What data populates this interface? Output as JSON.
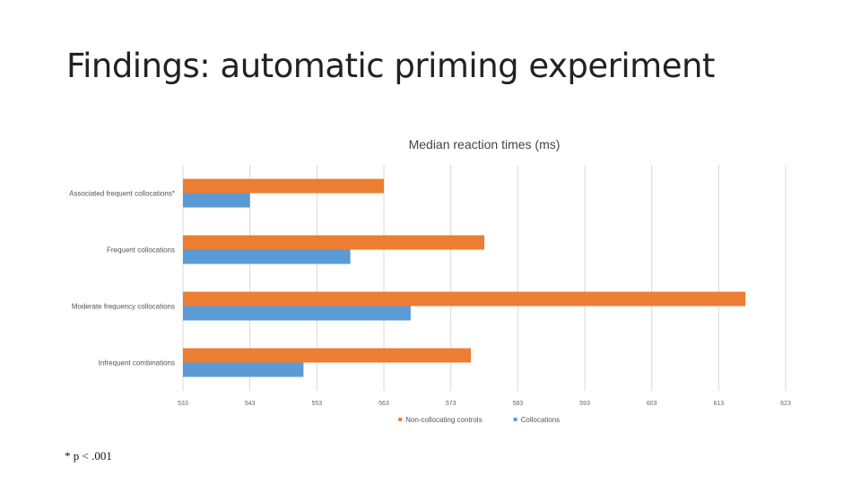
{
  "slide": {
    "title": "Findings: automatic priming experiment",
    "footnote": "* p < .001"
  },
  "chart_data": {
    "type": "bar",
    "orientation": "horizontal",
    "title": "Median reaction times (ms)",
    "categories": [
      "Associated frequent collocations*",
      "Frequent collocations",
      "Moderate frequency collocations",
      "Infrequent combinations"
    ],
    "series": [
      {
        "name": "Non-collocating controls",
        "color": "#ED7D31",
        "values": [
          563,
          578,
          617,
          576
        ]
      },
      {
        "name": "Collocations",
        "color": "#5B9BD5",
        "values": [
          543,
          558,
          567,
          551
        ]
      }
    ],
    "xlim": [
      533,
      623
    ],
    "xticks": [
      533,
      543,
      553,
      563,
      573,
      583,
      593,
      603,
      613,
      623
    ],
    "grid": true,
    "legend": "bottom"
  }
}
